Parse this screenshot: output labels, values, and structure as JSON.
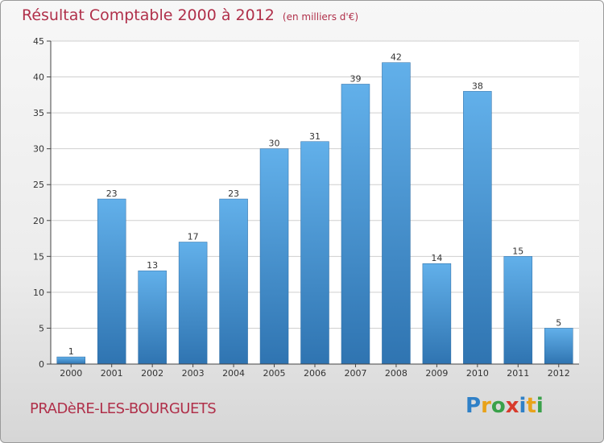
{
  "header": {
    "title": "Résultat Comptable 2000 à 2012",
    "unit": "(en milliers d'€)"
  },
  "footer": {
    "commune": "PRADèRE-LES-BOURGUETS",
    "logo": "Proxiti"
  },
  "colors": {
    "title": "#b0304a",
    "bar_top": "#62b0ea",
    "bar_bottom": "#2f74b1"
  },
  "chart_data": {
    "type": "bar",
    "title": "Résultat Comptable 2000 à 2012",
    "xlabel": "",
    "ylabel": "",
    "categories": [
      "2000",
      "2001",
      "2002",
      "2003",
      "2004",
      "2005",
      "2006",
      "2007",
      "2008",
      "2009",
      "2010",
      "2011",
      "2012"
    ],
    "values": [
      1,
      23,
      13,
      17,
      23,
      30,
      31,
      39,
      42,
      14,
      38,
      15,
      5
    ],
    "ylim": [
      0,
      45
    ],
    "yticks": [
      0,
      5,
      10,
      15,
      20,
      25,
      30,
      35,
      40,
      45
    ],
    "grid": true
  }
}
